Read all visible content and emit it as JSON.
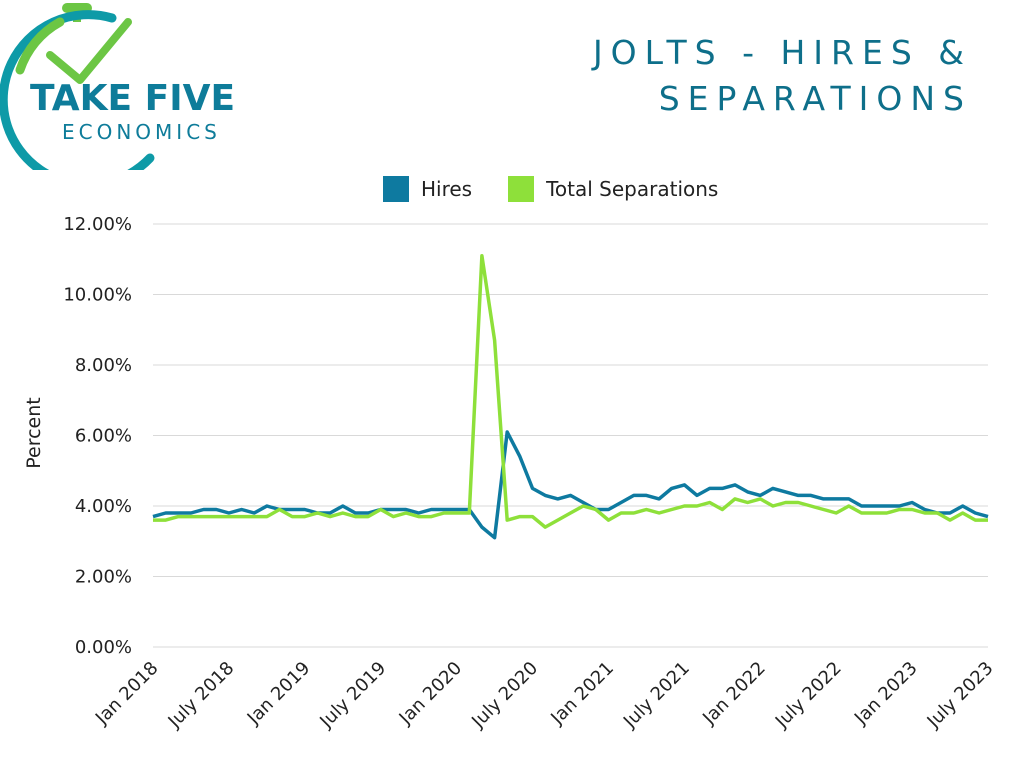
{
  "logo": {
    "line1": "TAKE FIVE",
    "line2": "ECONOMICS",
    "colors": {
      "teal": "#0e7c9a",
      "green": "#6cc644"
    }
  },
  "chart_data": {
    "type": "line",
    "title": "JOLTS - HIRES & SEPARATIONS",
    "ylabel": "Percent",
    "xlabel": "",
    "ylim": [
      0,
      12
    ],
    "yticks": [
      "0.00%",
      "2.00%",
      "4.00%",
      "6.00%",
      "8.00%",
      "10.00%",
      "12.00%"
    ],
    "xtick_labels": [
      "Jan 2018",
      "July 2018",
      "Jan 2019",
      "July 2019",
      "Jan 2020",
      "July 2020",
      "Jan 2021",
      "July 2021",
      "Jan 2022",
      "July 2022",
      "Jan 2023",
      "July 2023"
    ],
    "grid": true,
    "legend_position": "top",
    "series": [
      {
        "name": "Hires",
        "color": "#0e7aa0",
        "values": [
          3.7,
          3.8,
          3.8,
          3.8,
          3.9,
          3.9,
          3.8,
          3.9,
          3.8,
          4.0,
          3.9,
          3.9,
          3.9,
          3.8,
          3.8,
          4.0,
          3.8,
          3.8,
          3.9,
          3.9,
          3.9,
          3.8,
          3.9,
          3.9,
          3.9,
          3.9,
          3.4,
          3.1,
          6.1,
          5.4,
          4.5,
          4.3,
          4.2,
          4.3,
          4.1,
          3.9,
          3.9,
          4.1,
          4.3,
          4.3,
          4.2,
          4.5,
          4.6,
          4.3,
          4.5,
          4.5,
          4.6,
          4.4,
          4.3,
          4.5,
          4.4,
          4.3,
          4.3,
          4.2,
          4.2,
          4.2,
          4.0,
          4.0,
          4.0,
          4.0,
          4.1,
          3.9,
          3.8,
          3.8,
          4.0,
          3.8,
          3.7
        ]
      },
      {
        "name": "Total Separations",
        "color": "#8ee03a",
        "values": [
          3.6,
          3.6,
          3.7,
          3.7,
          3.7,
          3.7,
          3.7,
          3.7,
          3.7,
          3.7,
          3.9,
          3.7,
          3.7,
          3.8,
          3.7,
          3.8,
          3.7,
          3.7,
          3.9,
          3.7,
          3.8,
          3.7,
          3.7,
          3.8,
          3.8,
          3.8,
          11.1,
          8.7,
          3.6,
          3.7,
          3.7,
          3.4,
          3.6,
          3.8,
          4.0,
          3.9,
          3.6,
          3.8,
          3.8,
          3.9,
          3.8,
          3.9,
          4.0,
          4.0,
          4.1,
          3.9,
          4.2,
          4.1,
          4.2,
          4.0,
          4.1,
          4.1,
          4.0,
          3.9,
          3.8,
          4.0,
          3.8,
          3.8,
          3.8,
          3.9,
          3.9,
          3.8,
          3.8,
          3.6,
          3.8,
          3.6,
          3.6
        ]
      }
    ]
  }
}
